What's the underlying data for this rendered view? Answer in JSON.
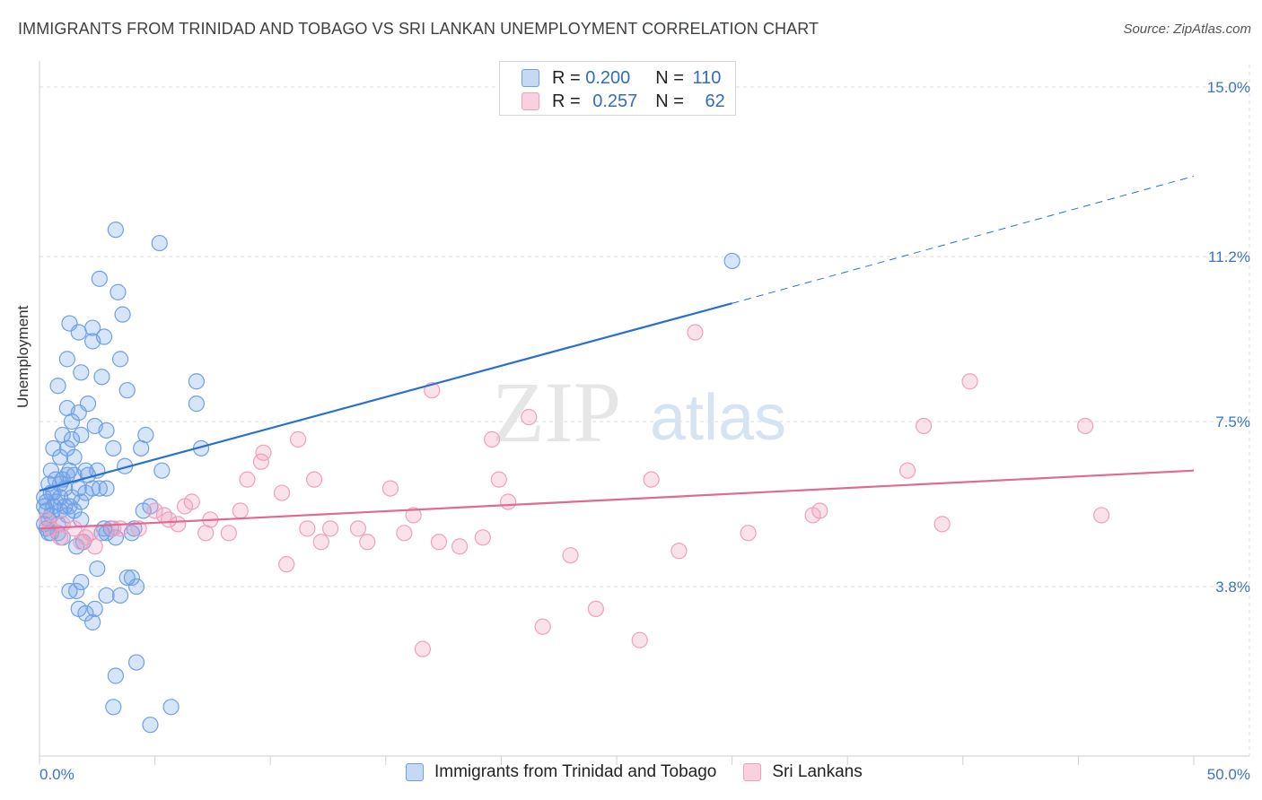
{
  "header": {
    "title": "IMMIGRANTS FROM TRINIDAD AND TOBAGO VS SRI LANKAN UNEMPLOYMENT CORRELATION CHART",
    "source": "Source: ZipAtlas.com"
  },
  "watermark": {
    "zip": "ZIP",
    "atlas": "atlas"
  },
  "legend": {
    "rows": [
      {
        "r_label": "R =",
        "r_value": "0.200",
        "n_label": "N =",
        "n_value": "110",
        "color": "#6fa0e6"
      },
      {
        "r_label": "R =",
        "r_value": "0.257",
        "n_label": "N =",
        "n_value": "62",
        "color": "#f0a0bc"
      }
    ]
  },
  "chart_data": {
    "type": "scatter",
    "title": "IMMIGRANTS FROM TRINIDAD AND TOBAGO VS SRI LANKAN UNEMPLOYMENT CORRELATION CHART",
    "xlabel": "",
    "ylabel": "Unemployment",
    "xlim": [
      0,
      50
    ],
    "ylim": [
      0,
      15.6
    ],
    "x_tick_labels": [
      "0.0%",
      "50.0%"
    ],
    "y_ticks": [
      3.8,
      7.5,
      11.2,
      15.0
    ],
    "y_tick_labels": [
      "3.8%",
      "7.5%",
      "11.2%",
      "15.0%"
    ],
    "grid": true,
    "legend_position": "top-center",
    "series": [
      {
        "name": "Immigrants from Trinidad and Tobago",
        "color": "#6fa0e6",
        "line_color": "#2a6fcf",
        "trend": {
          "x": [
            0,
            30
          ],
          "y": [
            5.95,
            10.15
          ],
          "dashed_to": [
            50,
            13.0
          ]
        },
        "points": [
          [
            3.3,
            11.8
          ],
          [
            5.2,
            11.5
          ],
          [
            2.6,
            10.7
          ],
          [
            3.4,
            10.4
          ],
          [
            3.6,
            9.9
          ],
          [
            1.3,
            9.7
          ],
          [
            1.7,
            9.5
          ],
          [
            2.3,
            9.6
          ],
          [
            2.3,
            9.3
          ],
          [
            2.8,
            9.4
          ],
          [
            1.2,
            8.9
          ],
          [
            3.5,
            8.9
          ],
          [
            1.8,
            8.6
          ],
          [
            2.7,
            8.5
          ],
          [
            6.8,
            8.4
          ],
          [
            0.8,
            8.3
          ],
          [
            3.8,
            8.2
          ],
          [
            2.1,
            7.9
          ],
          [
            1.2,
            7.8
          ],
          [
            1.7,
            7.7
          ],
          [
            6.8,
            7.9
          ],
          [
            1.4,
            7.5
          ],
          [
            2.4,
            7.4
          ],
          [
            2.9,
            7.3
          ],
          [
            1.0,
            7.2
          ],
          [
            1.4,
            7.1
          ],
          [
            1.8,
            7.2
          ],
          [
            4.6,
            7.2
          ],
          [
            0.6,
            6.9
          ],
          [
            1.2,
            6.9
          ],
          [
            3.2,
            6.9
          ],
          [
            4.4,
            6.9
          ],
          [
            7.0,
            6.9
          ],
          [
            0.9,
            6.7
          ],
          [
            1.5,
            6.7
          ],
          [
            0.5,
            6.4
          ],
          [
            1.3,
            6.4
          ],
          [
            2.0,
            6.4
          ],
          [
            2.1,
            6.3
          ],
          [
            3.7,
            6.5
          ],
          [
            5.3,
            6.4
          ],
          [
            0.7,
            6.2
          ],
          [
            1.0,
            6.2
          ],
          [
            1.2,
            6.3
          ],
          [
            1.5,
            6.3
          ],
          [
            2.5,
            6.4
          ],
          [
            0.4,
            6.1
          ],
          [
            0.9,
            6.1
          ],
          [
            1.7,
            6.0
          ],
          [
            2.3,
            6.0
          ],
          [
            2.9,
            6.0
          ],
          [
            0.5,
            5.9
          ],
          [
            0.9,
            5.8
          ],
          [
            1.4,
            5.8
          ],
          [
            1.8,
            5.7
          ],
          [
            2.0,
            5.9
          ],
          [
            2.6,
            6.0
          ],
          [
            0.2,
            5.8
          ],
          [
            0.3,
            5.7
          ],
          [
            0.7,
            5.7
          ],
          [
            1.1,
            5.6
          ],
          [
            1.3,
            5.6
          ],
          [
            0.6,
            5.6
          ],
          [
            0.9,
            5.5
          ],
          [
            1.5,
            5.5
          ],
          [
            0.3,
            5.5
          ],
          [
            0.5,
            5.4
          ],
          [
            1.2,
            5.4
          ],
          [
            1.8,
            5.3
          ],
          [
            4.5,
            5.5
          ],
          [
            4.8,
            5.6
          ],
          [
            0.2,
            5.2
          ],
          [
            0.3,
            5.1
          ],
          [
            0.5,
            5.0
          ],
          [
            0.4,
            5.0
          ],
          [
            0.8,
            5.0
          ],
          [
            1.0,
            4.9
          ],
          [
            2.7,
            5.0
          ],
          [
            2.8,
            5.1
          ],
          [
            2.9,
            5.0
          ],
          [
            3.3,
            4.9
          ],
          [
            3.1,
            5.1
          ],
          [
            4.0,
            5.0
          ],
          [
            4.1,
            5.1
          ],
          [
            1.6,
            4.7
          ],
          [
            1.9,
            4.8
          ],
          [
            2.5,
            4.2
          ],
          [
            3.8,
            4.0
          ],
          [
            4.0,
            4.0
          ],
          [
            1.8,
            3.9
          ],
          [
            1.6,
            3.7
          ],
          [
            1.3,
            3.7
          ],
          [
            2.9,
            3.6
          ],
          [
            3.5,
            3.6
          ],
          [
            4.2,
            3.8
          ],
          [
            1.7,
            3.3
          ],
          [
            2.4,
            3.3
          ],
          [
            2.0,
            3.2
          ],
          [
            2.3,
            3.0
          ],
          [
            4.2,
            2.1
          ],
          [
            3.3,
            1.8
          ],
          [
            3.2,
            1.1
          ],
          [
            5.7,
            1.1
          ],
          [
            4.8,
            0.7
          ],
          [
            0.2,
            5.6
          ],
          [
            0.4,
            5.3
          ],
          [
            0.8,
            5.2
          ],
          [
            30.0,
            11.1
          ],
          [
            0.6,
            5.9
          ],
          [
            1.1,
            6.0
          ]
        ]
      },
      {
        "name": "Sri Lankans",
        "color": "#f0a0bc",
        "line_color": "#e06a95",
        "trend": {
          "x": [
            0,
            50
          ],
          "y": [
            5.1,
            6.4
          ]
        },
        "points": [
          [
            28.4,
            9.5
          ],
          [
            40.3,
            8.4
          ],
          [
            17.0,
            8.2
          ],
          [
            21.2,
            7.6
          ],
          [
            38.3,
            7.4
          ],
          [
            45.3,
            7.4
          ],
          [
            19.6,
            7.1
          ],
          [
            11.2,
            7.1
          ],
          [
            9.7,
            6.8
          ],
          [
            9.6,
            6.6
          ],
          [
            37.6,
            6.4
          ],
          [
            9.0,
            6.2
          ],
          [
            26.5,
            6.2
          ],
          [
            11.9,
            6.2
          ],
          [
            19.9,
            6.2
          ],
          [
            15.2,
            6.0
          ],
          [
            10.5,
            5.9
          ],
          [
            20.3,
            5.7
          ],
          [
            6.6,
            5.7
          ],
          [
            6.3,
            5.6
          ],
          [
            8.7,
            5.5
          ],
          [
            5.0,
            5.5
          ],
          [
            5.4,
            5.4
          ],
          [
            16.2,
            5.4
          ],
          [
            33.8,
            5.5
          ],
          [
            33.5,
            5.4
          ],
          [
            46.0,
            5.4
          ],
          [
            7.4,
            5.3
          ],
          [
            5.6,
            5.3
          ],
          [
            6.0,
            5.2
          ],
          [
            1.0,
            5.2
          ],
          [
            3.2,
            5.1
          ],
          [
            3.5,
            5.1
          ],
          [
            11.6,
            5.1
          ],
          [
            12.6,
            5.1
          ],
          [
            13.8,
            5.1
          ],
          [
            39.1,
            5.2
          ],
          [
            0.5,
            5.1
          ],
          [
            2.2,
            5.0
          ],
          [
            7.2,
            5.0
          ],
          [
            8.2,
            5.0
          ],
          [
            15.8,
            5.0
          ],
          [
            30.7,
            5.0
          ],
          [
            0.9,
            4.9
          ],
          [
            2.0,
            4.9
          ],
          [
            19.2,
            4.9
          ],
          [
            17.3,
            4.8
          ],
          [
            12.2,
            4.8
          ],
          [
            14.2,
            4.8
          ],
          [
            18.2,
            4.7
          ],
          [
            2.4,
            4.7
          ],
          [
            27.7,
            4.6
          ],
          [
            23.0,
            4.5
          ],
          [
            10.7,
            4.3
          ],
          [
            24.1,
            3.3
          ],
          [
            21.8,
            2.9
          ],
          [
            26.0,
            2.6
          ],
          [
            16.6,
            2.4
          ],
          [
            0.3,
            5.3
          ],
          [
            1.5,
            5.1
          ],
          [
            4.3,
            5.1
          ],
          [
            1.8,
            4.8
          ]
        ]
      }
    ]
  },
  "axes": {
    "y_label": "Unemployment",
    "x_min_label": "0.0%",
    "x_max_label": "50.0%"
  },
  "bottom_legend": {
    "items": [
      {
        "label": "Immigrants from Trinidad and Tobago",
        "color": "#6fa0e6"
      },
      {
        "label": "Sri Lankans",
        "color": "#f0a0bc"
      }
    ]
  }
}
